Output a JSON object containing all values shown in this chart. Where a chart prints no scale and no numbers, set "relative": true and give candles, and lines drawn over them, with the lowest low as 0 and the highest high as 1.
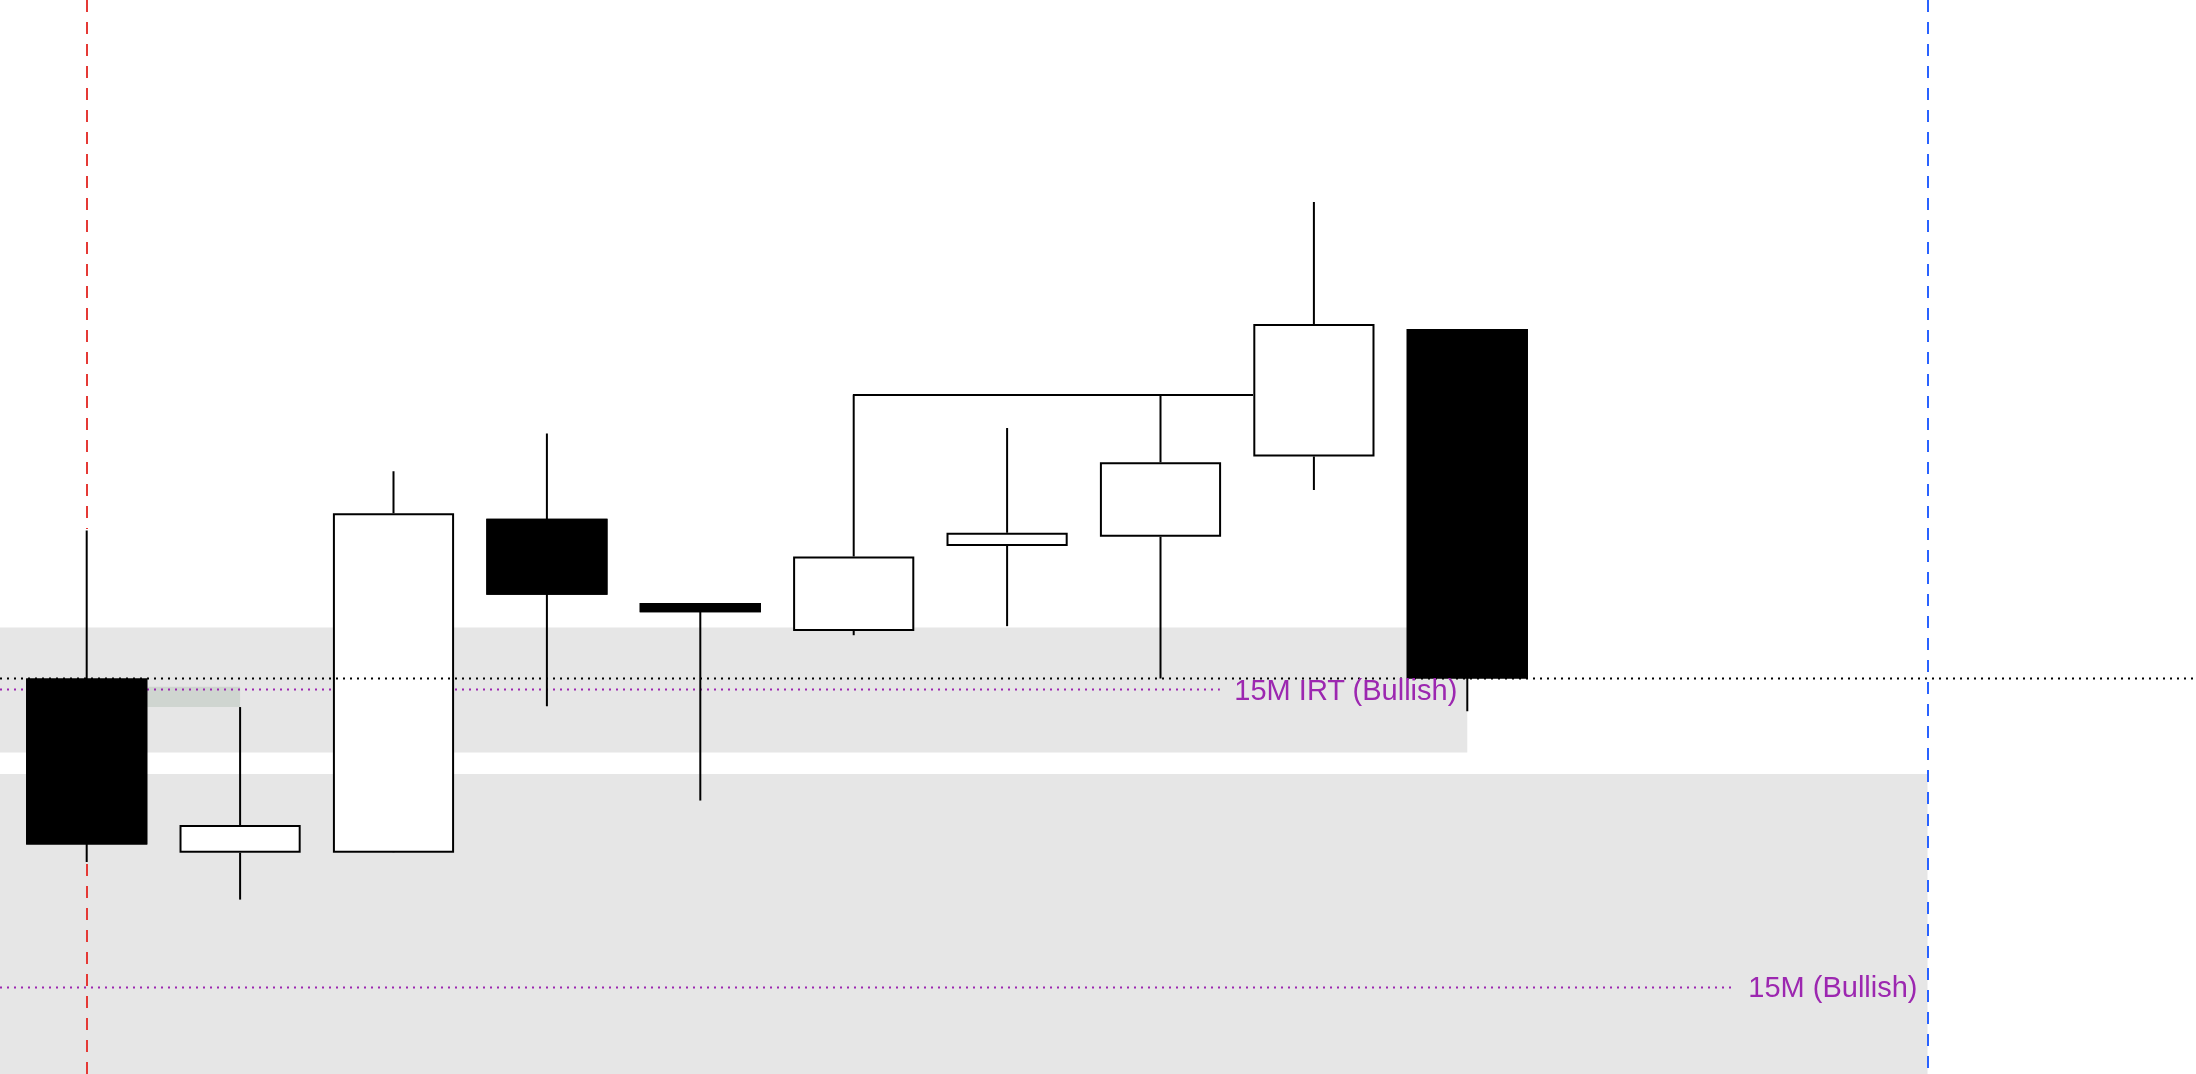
{
  "chart_data": {
    "type": "candlestick",
    "relative": true,
    "categories": [
      null,
      null,
      null,
      null,
      null,
      null,
      null,
      null,
      null,
      null
    ],
    "ohlc": [
      [
        0.317,
        0.529,
        0.054,
        0.079
      ],
      [
        0.067,
        0.276,
        0,
        0.107
      ],
      [
        0.067,
        0.614,
        0.067,
        0.554
      ],
      [
        0.546,
        0.668,
        0.277,
        0.437
      ],
      [
        0.425,
        0.425,
        0.142,
        0.412
      ],
      [
        0.385,
        0.724,
        0.379,
        0.492
      ],
      [
        0.507,
        0.676,
        0.392,
        0.526
      ],
      [
        0.52,
        0.724,
        0.317,
        0.627
      ],
      [
        0.635,
        1,
        0.587,
        0.825
      ],
      [
        0.818,
        0.818,
        0.27,
        0.317
      ]
    ],
    "colors": [
      "#000000",
      "#ffffff",
      "#ffffff",
      "#000000",
      "#000000",
      "#ffffff",
      "#ffffff",
      "#ffffff",
      "#ffffff",
      "#000000"
    ],
    "ref_lines": [
      {
        "axis": "y",
        "value": 0.317,
        "color": "#000000",
        "line_style": "dotted"
      },
      {
        "axis": "y",
        "value": 0.301,
        "label": "15M IRT (Bullish)",
        "color": "#9c27b0",
        "line_style": "dotted"
      },
      {
        "axis": "y",
        "value": -0.126,
        "label": "15M (Bullish)",
        "color": "#9c27b0",
        "line_style": "dotted"
      }
    ],
    "bands": [
      {
        "axis": "y",
        "from": 0.211,
        "to": 0.39,
        "color": "#e6e6e6"
      },
      {
        "axis": "y",
        "from": -0.25,
        "to": 0.18,
        "color": "#e6e6e6"
      },
      {
        "axis": "y",
        "from": 0.276,
        "to": 0.305,
        "color": "#cfd5d0"
      }
    ]
  }
}
